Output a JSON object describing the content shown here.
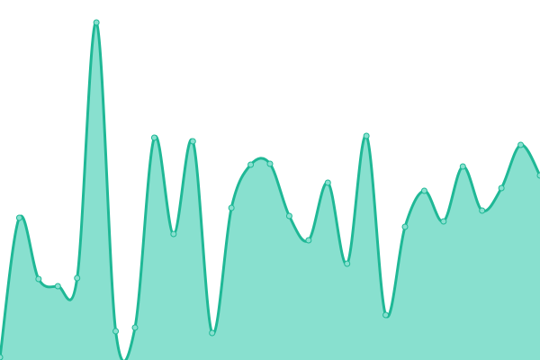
{
  "chart_data": {
    "type": "area",
    "x": [
      0,
      1,
      2,
      3,
      4,
      5,
      6,
      7,
      8,
      9,
      10,
      11,
      12,
      13,
      14,
      15,
      16,
      17,
      18,
      19,
      20,
      21,
      22,
      23,
      24,
      25,
      26,
      27,
      28
    ],
    "series": [
      {
        "color": "#1fb896",
        "fill": "#88e0cf",
        "values": [
          3,
          158,
          90,
          82,
          91,
          375,
          32,
          36,
          247,
          140,
          243,
          30,
          169,
          217,
          218,
          160,
          133,
          197,
          107,
          249,
          50,
          148,
          188,
          154,
          215,
          166,
          191,
          239,
          205
        ]
      }
    ],
    "xlim": [
      0,
      28
    ],
    "ylim": [
      0,
      400
    ]
  }
}
